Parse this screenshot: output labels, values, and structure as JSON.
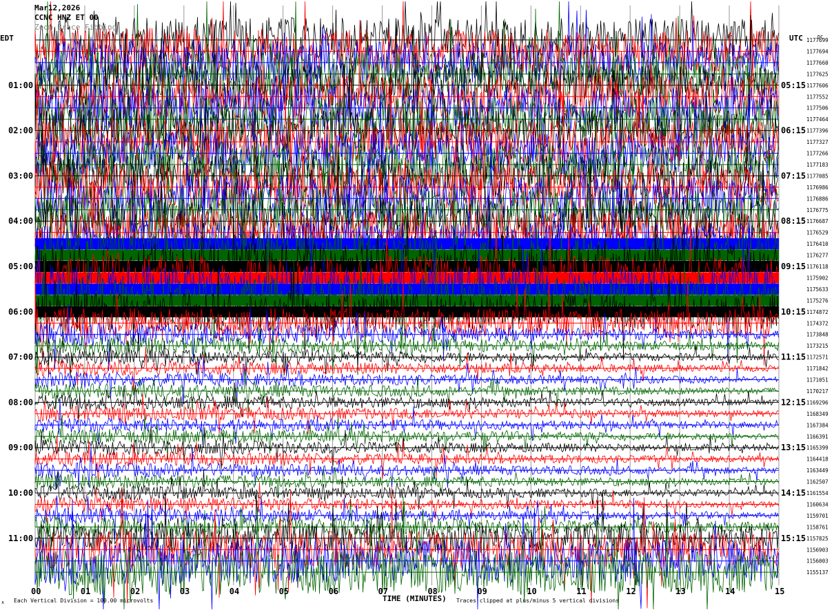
{
  "header": {
    "date": "Mar12,2026",
    "station": "CCNC HNZ ET 00",
    "overlay_text": "Zoom Brace Fibbing",
    "corner_code": "DC",
    "corner_mark": "∧"
  },
  "axes": {
    "left_tz": "EDT",
    "right_tz": "UTC",
    "x_title": "TIME (MINUTES)"
  },
  "footer": {
    "division_note": "Each Vertical Division =  100.00 microvolts",
    "clip_note": "Traces clipped at plus/minus 5 vertical divisions"
  },
  "colors": [
    "#000000",
    "#ff0000",
    "#0000ff",
    "#006400"
  ],
  "chart_data": {
    "type": "line",
    "title": "Mar12,2026 CCNC HNZ ET 00",
    "xlabel": "TIME (MINUTES)",
    "xlim": [
      0,
      15
    ],
    "x_ticks": [
      "00",
      "01",
      "02",
      "03",
      "04",
      "05",
      "06",
      "07",
      "08",
      "09",
      "10",
      "11",
      "12",
      "13",
      "14",
      "15"
    ],
    "left_time_labels": [
      "01:00",
      "02:00",
      "03:00",
      "04:00",
      "05:00",
      "06:00",
      "07:00",
      "08:00",
      "09:00",
      "10:00",
      "11:00"
    ],
    "right_time_labels": [
      "05:15",
      "06:15",
      "07:15",
      "08:15",
      "09:15",
      "10:15",
      "11:15",
      "12:15",
      "13:15",
      "14:15",
      "15:15"
    ],
    "trace_counts": [
      "1177699",
      "1177694",
      "1177660",
      "1177625",
      "1177606",
      "1177552",
      "1177506",
      "1177464",
      "1177396",
      "1177327",
      "1177266",
      "1177183",
      "1177085",
      "1176986",
      "1176886",
      "1176775",
      "1176687",
      "1176529",
      "1176410",
      "1176277",
      "1176118",
      "1175902",
      "1175633",
      "1175276",
      "1174872",
      "1174372",
      "1173848",
      "1173215",
      "1172571",
      "1171842",
      "1171051",
      "1170217",
      "1169296",
      "1168349",
      "1167384",
      "1166391",
      "1165399",
      "1164418",
      "1163449",
      "1162507",
      "1161554",
      "1160634",
      "1159701",
      "1158761",
      "1157825",
      "1156903",
      "1156003",
      "1155137"
    ],
    "traces_per_hour": 4,
    "minutes_per_trace": 15,
    "noise_level_per_trace": [
      6,
      6,
      6,
      6,
      6,
      6,
      6,
      6,
      6,
      6,
      6,
      6,
      6,
      6,
      6,
      6,
      6,
      6,
      6,
      6,
      6,
      6,
      6,
      6,
      5,
      4,
      3,
      2.5,
      2,
      2,
      2,
      2,
      2,
      2,
      2,
      2,
      2,
      2,
      2,
      2,
      2,
      2,
      2,
      3,
      4,
      5,
      6,
      6
    ],
    "saturated_band_traces": [
      18,
      19,
      20,
      21,
      22,
      23,
      24
    ]
  }
}
